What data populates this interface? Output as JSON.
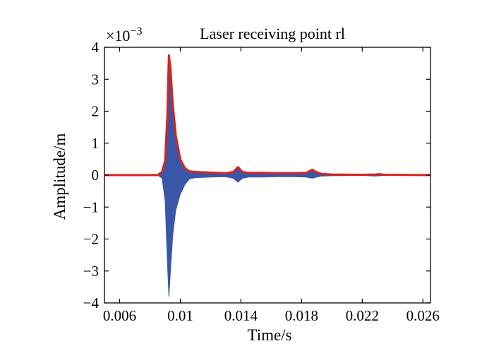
{
  "chart_data": {
    "type": "line",
    "title": "Laser receiving point rl",
    "xlabel": "Time/s",
    "ylabel": "Amplitude/m",
    "y_exponent_label": "×10",
    "y_exponent_power": "−3",
    "xlim": [
      0.005,
      0.0265
    ],
    "ylim": [
      -4,
      4
    ],
    "x_ticks": [
      0.006,
      0.01,
      0.014,
      0.018,
      0.022,
      0.026
    ],
    "x_tick_labels": [
      "0.006",
      "0.01",
      "0.014",
      "0.018",
      "0.022",
      "0.026"
    ],
    "y_ticks": [
      4,
      3,
      2,
      1,
      0,
      -1,
      -2,
      -3,
      -4
    ],
    "y_tick_labels": [
      "4",
      "3",
      "2",
      "1",
      "0",
      "−1",
      "−2",
      "−3",
      "−4"
    ],
    "grid": false,
    "series": [
      {
        "role": "signal",
        "color": "#3a56a8",
        "x": [
          0.005,
          0.0085,
          0.0088,
          0.009,
          0.00915,
          0.00925,
          0.00935,
          0.0095,
          0.0097,
          0.01,
          0.0103,
          0.0106,
          0.011,
          0.012,
          0.013,
          0.0135,
          0.0138,
          0.0141,
          0.0145,
          0.0155,
          0.0165,
          0.0175,
          0.0183,
          0.0187,
          0.019,
          0.0193,
          0.02,
          0.022,
          0.0229,
          0.0231,
          0.0235,
          0.0265
        ],
        "upper": [
          0.0,
          0.0,
          0.08,
          0.4,
          1.8,
          3.75,
          3.3,
          2.2,
          1.2,
          0.45,
          0.2,
          0.1,
          0.08,
          0.06,
          0.05,
          0.08,
          0.22,
          0.08,
          0.06,
          0.06,
          0.05,
          0.05,
          0.06,
          0.15,
          0.08,
          0.03,
          0.02,
          0.01,
          0.02,
          0.03,
          0.01,
          0.0
        ],
        "lower": [
          0.0,
          0.0,
          -0.1,
          -0.8,
          -2.7,
          -3.8,
          -3.0,
          -1.9,
          -1.1,
          -0.6,
          -0.3,
          -0.12,
          -0.08,
          -0.06,
          -0.05,
          -0.1,
          -0.22,
          -0.1,
          -0.06,
          -0.06,
          -0.05,
          -0.05,
          -0.06,
          -0.1,
          -0.06,
          -0.03,
          -0.02,
          -0.01,
          -0.03,
          -0.02,
          -0.01,
          0.0
        ]
      },
      {
        "role": "envelope",
        "color": "#d8241f",
        "x": [
          0.005,
          0.0085,
          0.0088,
          0.009,
          0.00915,
          0.00925,
          0.00935,
          0.0095,
          0.0097,
          0.01,
          0.0103,
          0.0106,
          0.011,
          0.012,
          0.013,
          0.0135,
          0.0138,
          0.0141,
          0.0145,
          0.0155,
          0.0165,
          0.0175,
          0.0183,
          0.0187,
          0.019,
          0.0193,
          0.02,
          0.022,
          0.0229,
          0.0231,
          0.0235,
          0.0265
        ],
        "y": [
          0.0,
          0.0,
          0.1,
          0.45,
          1.9,
          3.75,
          3.35,
          2.25,
          1.25,
          0.5,
          0.22,
          0.12,
          0.1,
          0.08,
          0.06,
          0.1,
          0.25,
          0.1,
          0.07,
          0.07,
          0.06,
          0.06,
          0.07,
          0.17,
          0.09,
          0.04,
          0.02,
          0.01,
          0.02,
          0.03,
          0.01,
          0.0
        ]
      }
    ]
  }
}
